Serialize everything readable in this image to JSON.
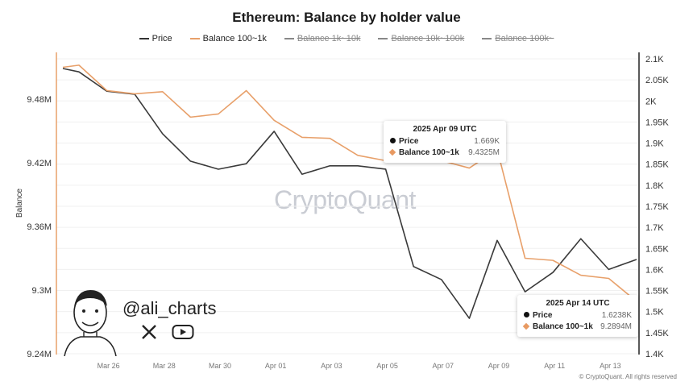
{
  "chart_data": {
    "type": "line",
    "title": "Ethereum: Balance by holder value",
    "legend": [
      {
        "name": "Price",
        "color": "#333333",
        "visible": true
      },
      {
        "name": "Balance 100~1k",
        "color": "#e8a06a",
        "visible": true
      },
      {
        "name": "Balance 1k~10k",
        "color": "#888888",
        "visible": false
      },
      {
        "name": "Balance 10k~100k",
        "color": "#888888",
        "visible": false
      },
      {
        "name": "Balance 100k~",
        "color": "#888888",
        "visible": false
      }
    ],
    "legend_position": "top-center",
    "x": [
      "2025-03-24",
      "2025-03-25",
      "2025-03-26",
      "2025-03-27",
      "2025-03-28",
      "2025-03-29",
      "2025-03-30",
      "2025-03-31",
      "2025-04-01",
      "2025-04-02",
      "2025-04-03",
      "2025-04-04",
      "2025-04-05",
      "2025-04-06",
      "2025-04-07",
      "2025-04-08",
      "2025-04-09",
      "2025-04-10",
      "2025-04-11",
      "2025-04-12",
      "2025-04-13",
      "2025-04-14"
    ],
    "x_tick_labels": [
      "Mar 26",
      "Mar 28",
      "Mar 30",
      "Apr 01",
      "Apr 03",
      "Apr 05",
      "Apr 07",
      "Apr 09",
      "Apr 11",
      "Apr 13"
    ],
    "series": [
      {
        "name": "Price",
        "axis": "right",
        "unit": "K",
        "values": [
          2.077,
          2.069,
          2.023,
          2.016,
          1.922,
          1.857,
          1.838,
          1.851,
          1.928,
          1.826,
          1.846,
          1.846,
          1.838,
          1.607,
          1.576,
          1.484,
          1.669,
          1.547,
          1.593,
          1.673,
          1.6,
          1.6238
        ]
      },
      {
        "name": "Balance 100~1k",
        "axis": "left",
        "unit": "M",
        "values": [
          9.51,
          9.512,
          9.488,
          9.485,
          9.487,
          9.463,
          9.466,
          9.488,
          9.46,
          9.444,
          9.443,
          9.427,
          9.422,
          9.429,
          9.422,
          9.415,
          9.4325,
          9.33,
          9.328,
          9.314,
          9.311,
          9.2894
        ]
      }
    ],
    "ylabel": "Balance",
    "ylim_left": [
      9.24,
      9.5
    ],
    "yticks_left": [
      "9.24M",
      "9.3M",
      "9.36M",
      "9.42M",
      "9.48M"
    ],
    "ylim_right": [
      1.4,
      2.1
    ],
    "yticks_right": [
      "1.4K",
      "1.45K",
      "1.5K",
      "1.55K",
      "1.6K",
      "1.65K",
      "1.7K",
      "1.75K",
      "1.8K",
      "1.85K",
      "1.9K",
      "1.95K",
      "2K",
      "2.05K",
      "2.1K"
    ],
    "grid": true
  },
  "tooltips": [
    {
      "date": "2025 Apr 09 UTC",
      "price_label": "Price",
      "price": "1.669K",
      "balance_label": "Balance 100~1k",
      "balance": "9.4325M"
    },
    {
      "date": "2025 Apr 14 UTC",
      "price_label": "Price",
      "price": "1.6238K",
      "balance_label": "Balance 100~1k",
      "balance": "9.2894M"
    }
  ],
  "watermark": "CryptoQuant",
  "handle": "@ali_charts",
  "footer": "© CryptoQuant. All rights reserved"
}
